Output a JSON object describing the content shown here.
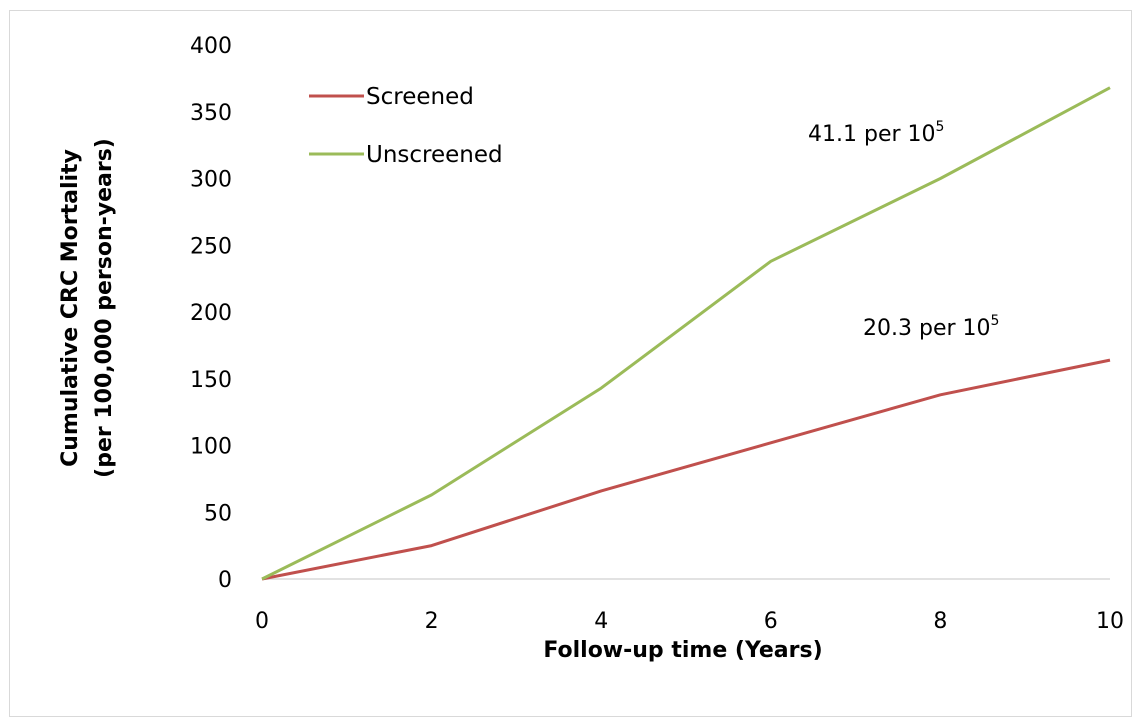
{
  "chart_data": {
    "type": "line",
    "title": "",
    "xlabel": "Follow-up time (Years)",
    "ylabel_line1": "Cumulative CRC Mortality",
    "ylabel_line2": "(per 100,000 person-years)",
    "xlim": [
      0,
      10
    ],
    "ylim": [
      0,
      400
    ],
    "x_ticks": [
      0,
      2,
      4,
      6,
      8,
      10
    ],
    "y_ticks": [
      0,
      50,
      100,
      150,
      200,
      250,
      300,
      350,
      400
    ],
    "grid": false,
    "legend_position": "top-left",
    "series": [
      {
        "name": "Screened",
        "color": "#c0504d",
        "x": [
          0,
          2,
          4,
          6,
          8,
          10
        ],
        "values": [
          0,
          25,
          66,
          102,
          138,
          164
        ]
      },
      {
        "name": "Unscreened",
        "color": "#9bbb59",
        "x": [
          0,
          2,
          4,
          6,
          8,
          10
        ],
        "values": [
          0,
          63,
          143,
          238,
          300,
          368
        ]
      }
    ],
    "annotations": [
      {
        "series": "Unscreened",
        "base": "41.1 per 10",
        "superscript": "5"
      },
      {
        "series": "Screened",
        "base": "20.3 per 10",
        "superscript": "5"
      }
    ]
  }
}
